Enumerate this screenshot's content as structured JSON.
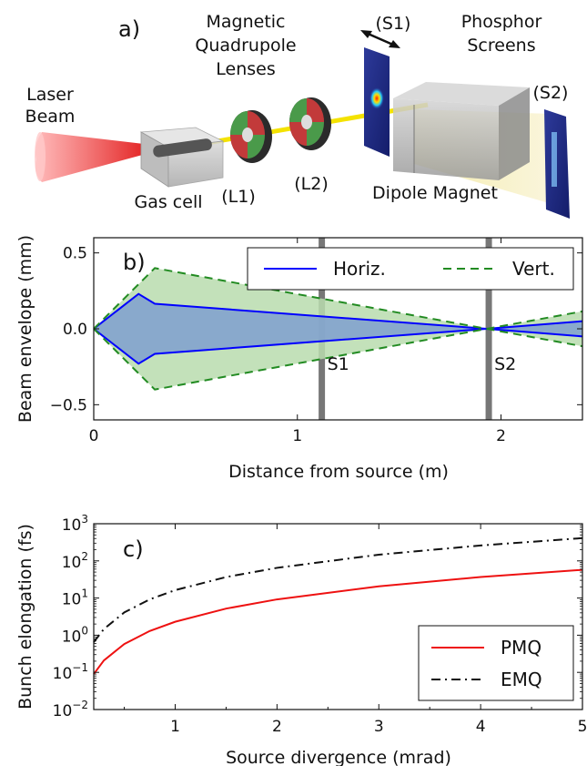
{
  "panel_a": {
    "label": "a)",
    "laser": [
      "Laser",
      "Beam"
    ],
    "magnetic": [
      "Magnetic",
      "Quadrupole",
      "Lenses"
    ],
    "s1_tag": "(S1)",
    "phosphor": [
      "Phosphor",
      "Screens"
    ],
    "s2_tag": "(S2)",
    "gas_cell": "Gas cell",
    "l1": "(L1)",
    "l2": "(L2)",
    "dipole": "Dipole Magnet"
  },
  "chart_data": [
    {
      "type": "area",
      "panel_label": "b)",
      "xlabel": "Distance from source (m)",
      "ylabel": "Beam envelope (mm)",
      "xlim": [
        0,
        2.4
      ],
      "ylim": [
        -0.6,
        0.6
      ],
      "xticks": [
        0,
        1,
        2
      ],
      "xtick_labels": [
        "0",
        "1",
        "2"
      ],
      "yticks": [
        -0.5,
        0.0,
        0.5
      ],
      "ytick_labels": [
        "−0.5",
        "0.0",
        "0.5"
      ],
      "legend_position": "top-right",
      "colors": {
        "horiz": "#0000ff",
        "vert": "#228b22",
        "horiz_fill": "#7f9fcf",
        "vert_fill": "#b9dcae",
        "screen": "#777777"
      },
      "series": [
        {
          "name": "Horiz.",
          "style": "solid",
          "x": [
            0,
            0.22,
            0.3,
            1.93,
            2.4
          ],
          "upper": [
            0,
            0.23,
            0.165,
            0.0,
            0.05
          ],
          "lower": [
            0,
            -0.23,
            -0.165,
            0.0,
            -0.05
          ]
        },
        {
          "name": "Vert.",
          "style": "dashed",
          "x": [
            0,
            0.3,
            1.93,
            2.4
          ],
          "upper": [
            0,
            0.4,
            0.0,
            0.115
          ],
          "lower": [
            0,
            -0.4,
            0.0,
            -0.115
          ]
        }
      ],
      "screens": [
        {
          "name": "S1",
          "x": 1.12
        },
        {
          "name": "S2",
          "x": 1.94
        }
      ]
    },
    {
      "type": "line",
      "panel_label": "c)",
      "xlabel": "Source divergence (mrad)",
      "ylabel": "Bunch elongation (fs)",
      "log_y": true,
      "xlim": [
        0.2,
        5
      ],
      "ylim": [
        0.01,
        1000
      ],
      "xticks": [
        1,
        2,
        3,
        4,
        5
      ],
      "xtick_labels": [
        "1",
        "2",
        "3",
        "4",
        "5"
      ],
      "yticks": [
        0.01,
        0.1,
        1,
        10,
        100,
        1000
      ],
      "ytick_labels": [
        {
          "base": "10",
          "exp": "−2"
        },
        {
          "base": "10",
          "exp": "−1"
        },
        {
          "base": "10",
          "exp": "0"
        },
        {
          "base": "10",
          "exp": "1"
        },
        {
          "base": "10",
          "exp": "2"
        },
        {
          "base": "10",
          "exp": "3"
        }
      ],
      "legend_position": "bottom-right",
      "series": [
        {
          "name": "PMQ",
          "color": "#ee1111",
          "style": "solid",
          "x": [
            0.2,
            0.3,
            0.5,
            0.75,
            1,
            1.5,
            2,
            3,
            4,
            5
          ],
          "y": [
            0.09,
            0.21,
            0.58,
            1.3,
            2.3,
            5.2,
            9.2,
            20.7,
            36.8,
            57.5
          ]
        },
        {
          "name": "EMQ",
          "color": "#111111",
          "style": "dashdot",
          "x": [
            0.2,
            0.3,
            0.5,
            0.75,
            1,
            1.5,
            2,
            3,
            4,
            5
          ],
          "y": [
            0.65,
            1.47,
            4.1,
            9.2,
            16.3,
            36.7,
            65,
            147,
            260,
            410
          ]
        }
      ]
    }
  ]
}
